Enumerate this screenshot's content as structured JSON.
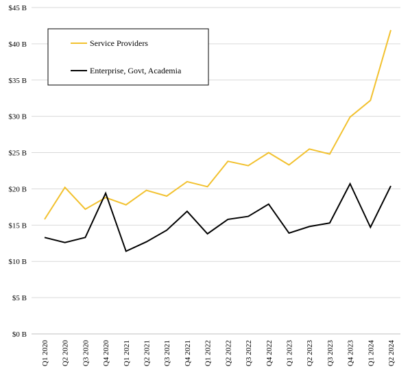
{
  "chart_data": {
    "type": "line",
    "categories": [
      "Q1 2020",
      "Q2 2020",
      "Q3 2020",
      "Q4 2020",
      "Q1 2021",
      "Q2 2021",
      "Q3 2021",
      "Q4 2021",
      "Q1 2022",
      "Q2 2022",
      "Q3 2022",
      "Q4 2022",
      "Q1 2023",
      "Q2 2023",
      "Q3 2023",
      "Q4 2023",
      "Q1 2024",
      "Q2 2024"
    ],
    "series": [
      {
        "name": "Service Providers",
        "color": "#F2C12E",
        "values": [
          15.8,
          20.2,
          17.2,
          18.8,
          17.8,
          19.8,
          19.0,
          21.0,
          20.3,
          23.8,
          23.2,
          25.0,
          23.3,
          25.5,
          24.8,
          29.9,
          32.2,
          41.9
        ]
      },
      {
        "name": "Enterprise, Govt, Academia",
        "color": "#000000",
        "values": [
          13.3,
          12.6,
          13.3,
          19.4,
          11.4,
          12.7,
          14.3,
          16.9,
          13.8,
          15.8,
          16.2,
          17.9,
          13.9,
          14.8,
          15.3,
          20.7,
          14.7,
          20.4
        ]
      }
    ],
    "yticks": [
      "$0 B",
      "$5 B",
      "$10 B",
      "$15 B",
      "$20 B",
      "$25 B",
      "$30 B",
      "$35 B",
      "$40 B",
      "$45 B"
    ],
    "ylim": [
      0,
      45
    ],
    "grid": true,
    "legend_position": "top-left",
    "title": "",
    "xlabel": "",
    "ylabel": ""
  }
}
